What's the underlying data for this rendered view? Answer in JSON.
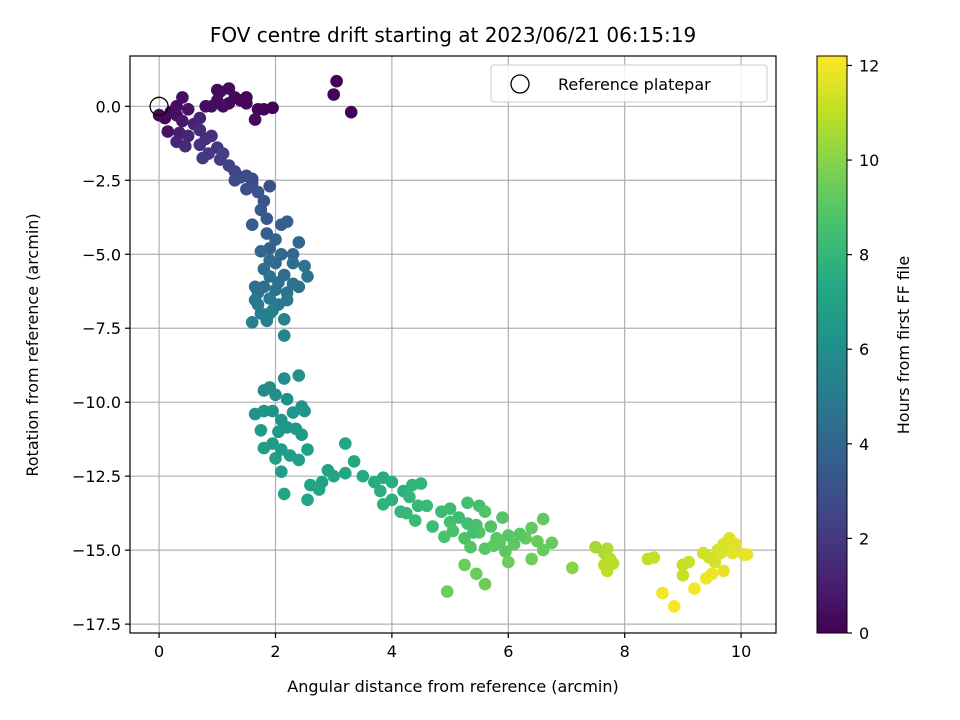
{
  "chart_data": {
    "type": "scatter",
    "title": "FOV centre drift starting at 2023/06/21 06:15:19",
    "xlabel": "Angular distance from reference (arcmin)",
    "ylabel": "Rotation from reference (arcmin)",
    "xlim": [
      -0.5,
      10.6
    ],
    "ylim": [
      -17.8,
      1.7
    ],
    "x_ticks": [
      0,
      2,
      4,
      6,
      8,
      10
    ],
    "y_ticks": [
      0.0,
      -2.5,
      -5.0,
      -7.5,
      -10.0,
      -12.5,
      -15.0,
      -17.5
    ],
    "x_tick_labels": [
      "0",
      "2",
      "4",
      "6",
      "8",
      "10"
    ],
    "y_tick_labels": [
      "0.0",
      "−2.5",
      "−5.0",
      "−7.5",
      "−10.0",
      "−12.5",
      "−15.0",
      "−17.5"
    ],
    "grid": true,
    "legend": {
      "position": "top-right",
      "entries": [
        "Reference platepar"
      ]
    },
    "reference_point": {
      "x": 0,
      "y": 0
    },
    "colorbar": {
      "label": "Hours from first FF file",
      "colormap": "viridis",
      "range": [
        0,
        12.2
      ],
      "ticks": [
        0,
        2,
        4,
        6,
        8,
        10,
        12
      ],
      "tick_labels": [
        "0",
        "2",
        "4",
        "6",
        "8",
        "10",
        "12"
      ]
    },
    "points": [
      [
        0.0,
        -0.3,
        0.1
      ],
      [
        0.1,
        -0.4,
        0.2
      ],
      [
        0.2,
        -0.2,
        0.3
      ],
      [
        0.3,
        0.0,
        0.4
      ],
      [
        0.4,
        0.3,
        0.5
      ],
      [
        0.3,
        -0.3,
        0.5
      ],
      [
        0.15,
        -0.85,
        0.6
      ],
      [
        0.5,
        -0.1,
        0.6
      ],
      [
        0.9,
        0.0,
        0.5
      ],
      [
        1.0,
        0.2,
        0.4
      ],
      [
        1.0,
        0.55,
        0.3
      ],
      [
        1.2,
        0.6,
        0.3
      ],
      [
        1.3,
        0.3,
        0.2
      ],
      [
        1.4,
        0.2,
        0.2
      ],
      [
        1.5,
        0.3,
        0.15
      ],
      [
        1.2,
        0.1,
        0.3
      ],
      [
        1.1,
        0.0,
        0.4
      ],
      [
        1.05,
        0.5,
        0.3
      ],
      [
        1.7,
        -0.1,
        0.1
      ],
      [
        1.8,
        -0.1,
        0.1
      ],
      [
        1.95,
        -0.05,
        0.05
      ],
      [
        1.65,
        -0.45,
        0.3
      ],
      [
        1.5,
        0.1,
        0.2
      ],
      [
        3.05,
        0.85,
        0.05
      ],
      [
        3.0,
        0.4,
        0.1
      ],
      [
        3.3,
        -0.2,
        0.05
      ],
      [
        0.8,
        0.0,
        0.4
      ],
      [
        0.4,
        -0.5,
        0.8
      ],
      [
        0.35,
        -0.9,
        1.0
      ],
      [
        0.6,
        -0.6,
        1.1
      ],
      [
        0.7,
        -0.4,
        1.2
      ],
      [
        0.5,
        -1.0,
        1.3
      ],
      [
        0.3,
        -1.2,
        1.3
      ],
      [
        0.45,
        -1.35,
        1.4
      ],
      [
        0.7,
        -0.8,
        1.5
      ],
      [
        0.8,
        -1.1,
        1.6
      ],
      [
        0.9,
        -1.0,
        1.7
      ],
      [
        0.7,
        -1.3,
        1.8
      ],
      [
        1.0,
        -1.4,
        1.9
      ],
      [
        0.85,
        -1.6,
        2.0
      ],
      [
        0.75,
        -1.75,
        2.1
      ],
      [
        1.05,
        -1.8,
        2.2
      ],
      [
        1.2,
        -2.0,
        2.4
      ],
      [
        1.1,
        -1.6,
        2.3
      ],
      [
        1.3,
        -2.2,
        2.5
      ],
      [
        1.4,
        -2.4,
        2.6
      ],
      [
        1.3,
        -2.5,
        2.7
      ],
      [
        1.5,
        -2.35,
        2.8
      ],
      [
        1.6,
        -2.6,
        2.9
      ],
      [
        1.5,
        -2.8,
        3.0
      ],
      [
        1.7,
        -2.9,
        3.1
      ],
      [
        1.8,
        -3.2,
        3.2
      ],
      [
        1.75,
        -3.5,
        3.3
      ],
      [
        1.85,
        -3.8,
        3.4
      ],
      [
        1.6,
        -2.45,
        2.9
      ],
      [
        1.9,
        -2.7,
        3.0
      ],
      [
        2.1,
        -4.0,
        3.6
      ],
      [
        1.6,
        -4.0,
        3.6
      ],
      [
        1.85,
        -4.3,
        3.7
      ],
      [
        1.9,
        -4.8,
        3.8
      ],
      [
        2.0,
        -4.5,
        3.9
      ],
      [
        2.2,
        -3.9,
        3.7
      ],
      [
        1.75,
        -4.9,
        4.0
      ],
      [
        2.1,
        -5.0,
        4.1
      ],
      [
        2.3,
        -5.0,
        4.1
      ],
      [
        2.4,
        -4.6,
        4.0
      ],
      [
        2.0,
        -5.3,
        4.2
      ],
      [
        1.8,
        -5.5,
        4.2
      ],
      [
        1.9,
        -5.2,
        4.3
      ],
      [
        2.15,
        -5.7,
        4.3
      ],
      [
        2.05,
        -5.95,
        4.4
      ],
      [
        1.65,
        -6.1,
        4.4
      ],
      [
        1.8,
        -6.1,
        4.5
      ],
      [
        1.9,
        -5.75,
        4.6
      ],
      [
        2.2,
        -6.3,
        4.6
      ],
      [
        2.3,
        -6.0,
        4.7
      ],
      [
        2.5,
        -5.4,
        4.8
      ],
      [
        2.55,
        -5.75,
        4.8
      ],
      [
        2.2,
        -6.55,
        4.9
      ],
      [
        2.05,
        -6.7,
        4.9
      ],
      [
        1.7,
        -6.7,
        5.0
      ],
      [
        1.9,
        -6.5,
        5.0
      ],
      [
        1.75,
        -7.0,
        5.1
      ],
      [
        1.6,
        -7.3,
        5.2
      ],
      [
        1.85,
        -7.25,
        5.2
      ],
      [
        1.95,
        -6.9,
        5.3
      ],
      [
        2.15,
        -7.2,
        5.4
      ],
      [
        1.7,
        -6.3,
        4.5
      ],
      [
        2.15,
        -7.75,
        5.5
      ],
      [
        2.0,
        -6.2,
        4.6
      ],
      [
        2.4,
        -6.1,
        4.7
      ],
      [
        2.3,
        -5.3,
        4.4
      ],
      [
        1.65,
        -6.55,
        4.9
      ],
      [
        1.9,
        -7.0,
        5.3
      ],
      [
        1.8,
        -9.6,
        5.7
      ],
      [
        1.9,
        -9.5,
        5.8
      ],
      [
        2.15,
        -9.2,
        5.9
      ],
      [
        2.4,
        -9.1,
        6.0
      ],
      [
        2.0,
        -9.75,
        6.0
      ],
      [
        2.2,
        -9.9,
        6.1
      ],
      [
        2.45,
        -10.15,
        6.1
      ],
      [
        1.65,
        -10.4,
        6.1
      ],
      [
        1.8,
        -10.3,
        6.2
      ],
      [
        1.95,
        -10.3,
        6.2
      ],
      [
        2.1,
        -10.6,
        6.3
      ],
      [
        2.3,
        -10.35,
        6.3
      ],
      [
        2.5,
        -10.3,
        6.4
      ],
      [
        2.2,
        -10.85,
        6.4
      ],
      [
        2.35,
        -10.9,
        6.5
      ],
      [
        2.05,
        -11.0,
        6.5
      ],
      [
        1.75,
        -10.95,
        6.5
      ],
      [
        2.45,
        -11.1,
        6.6
      ],
      [
        1.95,
        -11.4,
        6.6
      ],
      [
        2.1,
        -11.6,
        6.7
      ],
      [
        2.25,
        -11.8,
        6.7
      ],
      [
        1.8,
        -11.55,
        6.7
      ],
      [
        2.55,
        -11.6,
        6.8
      ],
      [
        2.0,
        -11.9,
        6.8
      ],
      [
        2.4,
        -11.95,
        6.9
      ],
      [
        2.1,
        -12.35,
        6.9
      ],
      [
        2.9,
        -12.3,
        7.0
      ],
      [
        2.8,
        -12.7,
        7.0
      ],
      [
        2.6,
        -12.8,
        7.1
      ],
      [
        3.0,
        -12.5,
        7.1
      ],
      [
        3.2,
        -12.4,
        7.2
      ],
      [
        2.75,
        -12.95,
        7.1
      ],
      [
        2.55,
        -13.3,
        7.2
      ],
      [
        2.15,
        -13.1,
        7.2
      ],
      [
        3.2,
        -11.4,
        7.3
      ],
      [
        3.35,
        -12.0,
        7.3
      ],
      [
        3.5,
        -12.5,
        7.4
      ],
      [
        3.7,
        -12.7,
        7.5
      ],
      [
        3.85,
        -12.55,
        7.5
      ],
      [
        4.0,
        -12.7,
        7.6
      ],
      [
        3.8,
        -13.0,
        7.7
      ],
      [
        4.0,
        -13.3,
        7.7
      ],
      [
        3.85,
        -13.45,
        7.8
      ],
      [
        4.2,
        -13.0,
        7.8
      ],
      [
        4.35,
        -12.8,
        7.9
      ],
      [
        4.5,
        -12.75,
        7.9
      ],
      [
        4.3,
        -13.2,
        8.0
      ],
      [
        4.15,
        -13.7,
        8.0
      ],
      [
        4.25,
        -13.75,
        8.1
      ],
      [
        4.45,
        -13.5,
        8.1
      ],
      [
        4.4,
        -14.0,
        8.2
      ],
      [
        4.6,
        -13.5,
        8.2
      ],
      [
        4.7,
        -14.2,
        8.3
      ],
      [
        4.85,
        -13.7,
        8.3
      ],
      [
        5.0,
        -13.6,
        8.4
      ],
      [
        5.15,
        -13.9,
        8.4
      ],
      [
        5.3,
        -13.4,
        8.5
      ],
      [
        5.5,
        -13.5,
        8.5
      ],
      [
        5.3,
        -14.1,
        8.5
      ],
      [
        5.45,
        -14.15,
        8.6
      ],
      [
        5.0,
        -14.05,
        8.6
      ],
      [
        4.9,
        -14.55,
        8.7
      ],
      [
        5.05,
        -14.35,
        8.7
      ],
      [
        5.25,
        -14.6,
        8.7
      ],
      [
        5.6,
        -13.7,
        8.8
      ],
      [
        5.7,
        -14.2,
        8.8
      ],
      [
        5.9,
        -13.9,
        8.9
      ],
      [
        5.5,
        -14.4,
        8.9
      ],
      [
        5.35,
        -14.9,
        8.9
      ],
      [
        5.6,
        -14.95,
        9.0
      ],
      [
        5.8,
        -14.6,
        9.0
      ],
      [
        6.0,
        -14.5,
        9.0
      ],
      [
        6.1,
        -14.8,
        9.1
      ],
      [
        5.95,
        -15.05,
        9.1
      ],
      [
        5.75,
        -14.85,
        9.1
      ],
      [
        6.3,
        -14.6,
        9.2
      ],
      [
        6.6,
        -13.95,
        9.2
      ],
      [
        6.4,
        -14.25,
        9.2
      ],
      [
        6.5,
        -14.7,
        9.3
      ],
      [
        6.75,
        -14.75,
        9.3
      ],
      [
        6.6,
        -15.0,
        9.3
      ],
      [
        6.0,
        -15.4,
        9.4
      ],
      [
        5.25,
        -15.5,
        9.4
      ],
      [
        5.45,
        -15.8,
        9.4
      ],
      [
        5.6,
        -16.15,
        9.5
      ],
      [
        4.95,
        -16.4,
        9.5
      ],
      [
        6.4,
        -15.3,
        9.5
      ],
      [
        6.2,
        -14.45,
        9.0
      ],
      [
        5.85,
        -14.75,
        9.1
      ],
      [
        5.4,
        -14.4,
        8.6
      ],
      [
        7.1,
        -15.6,
        10.0
      ],
      [
        7.5,
        -14.9,
        10.5
      ],
      [
        7.65,
        -15.1,
        10.6
      ],
      [
        7.7,
        -14.95,
        10.7
      ],
      [
        7.75,
        -15.3,
        10.8
      ],
      [
        7.8,
        -15.45,
        10.9
      ],
      [
        7.65,
        -15.5,
        10.9
      ],
      [
        7.7,
        -15.7,
        11.0
      ],
      [
        8.4,
        -15.3,
        11.0
      ],
      [
        8.5,
        -15.25,
        11.1
      ],
      [
        9.0,
        -15.5,
        11.1
      ],
      [
        9.1,
        -15.4,
        11.2
      ],
      [
        9.0,
        -15.85,
        11.2
      ],
      [
        9.35,
        -15.1,
        11.3
      ],
      [
        9.45,
        -15.25,
        11.3
      ],
      [
        9.6,
        -15.0,
        11.4
      ],
      [
        9.55,
        -15.4,
        11.4
      ],
      [
        9.7,
        -14.8,
        11.5
      ],
      [
        9.65,
        -15.1,
        11.5
      ],
      [
        9.8,
        -14.6,
        11.6
      ],
      [
        9.9,
        -14.8,
        11.6
      ],
      [
        9.85,
        -15.1,
        11.7
      ],
      [
        10.05,
        -15.15,
        11.7
      ],
      [
        10.1,
        -15.15,
        11.8
      ],
      [
        9.7,
        -15.7,
        11.8
      ],
      [
        9.4,
        -15.95,
        11.9
      ],
      [
        9.5,
        -15.8,
        11.9
      ],
      [
        9.2,
        -16.3,
        12.0
      ],
      [
        8.65,
        -16.45,
        12.0
      ],
      [
        8.85,
        -16.9,
        12.1
      ]
    ]
  }
}
